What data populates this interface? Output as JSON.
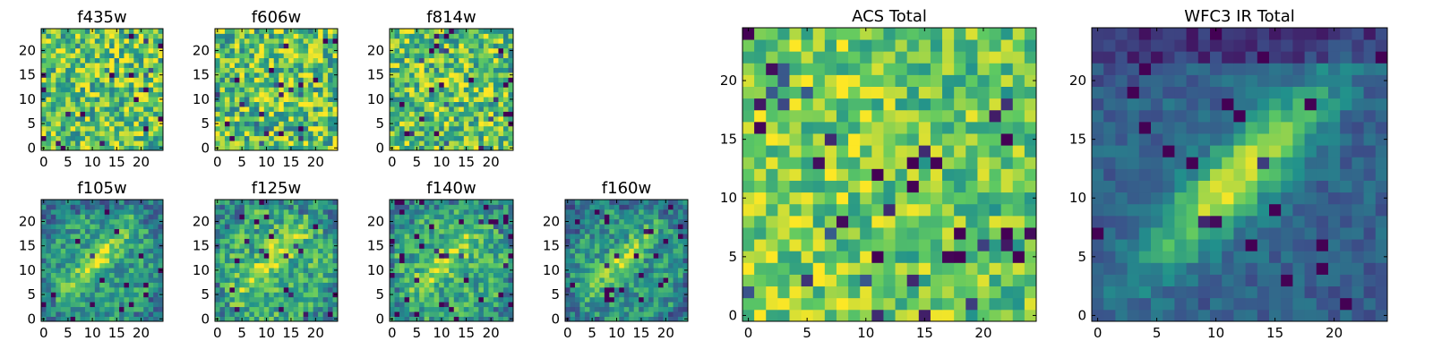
{
  "figure": {
    "description_seed": 1
  },
  "colors": {
    "colormap": [
      "#440154",
      "#3b528b",
      "#21918c",
      "#5ec962",
      "#fde725"
    ],
    "frame": "#000000",
    "background": "#ffffff"
  },
  "chart_data": [
    {
      "type": "heatmap",
      "title": "f435w",
      "xlabel": "",
      "ylabel": "",
      "xlim": [
        0,
        25
      ],
      "ylim": [
        0,
        25
      ],
      "xticks": [
        "0",
        "5",
        "10",
        "15",
        "20"
      ],
      "yticks": [
        "0",
        "5",
        "10",
        "15",
        "20"
      ],
      "grid_size": 25,
      "colormap": "viridis",
      "structure": "noise",
      "mean_level": 0.72,
      "noise_level": 0.32
    },
    {
      "type": "heatmap",
      "title": "f606w",
      "xlabel": "",
      "ylabel": "",
      "xlim": [
        0,
        25
      ],
      "ylim": [
        0,
        25
      ],
      "xticks": [
        "0",
        "5",
        "10",
        "15",
        "20"
      ],
      "yticks": [
        "0",
        "5",
        "10",
        "15",
        "20"
      ],
      "grid_size": 25,
      "colormap": "viridis",
      "structure": "noise",
      "mean_level": 0.72,
      "noise_level": 0.34
    },
    {
      "type": "heatmap",
      "title": "f814w",
      "xlabel": "",
      "ylabel": "",
      "xlim": [
        0,
        25
      ],
      "ylim": [
        0,
        25
      ],
      "xticks": [
        "0",
        "5",
        "10",
        "15",
        "20"
      ],
      "yticks": [
        "0",
        "5",
        "10",
        "15",
        "20"
      ],
      "grid_size": 25,
      "colormap": "viridis",
      "structure": "noise",
      "mean_level": 0.72,
      "noise_level": 0.32
    },
    {
      "type": "heatmap",
      "title": "f105w",
      "xlabel": "",
      "ylabel": "",
      "xlim": [
        0,
        25
      ],
      "ylim": [
        0,
        25
      ],
      "xticks": [
        "0",
        "5",
        "10",
        "15",
        "20"
      ],
      "yticks": [
        "0",
        "5",
        "10",
        "15",
        "20"
      ],
      "grid_size": 25,
      "colormap": "viridis",
      "structure": "diagonal_blob",
      "mean_level": 0.55,
      "noise_level": 0.2
    },
    {
      "type": "heatmap",
      "title": "f125w",
      "xlabel": "",
      "ylabel": "",
      "xlim": [
        0,
        25
      ],
      "ylim": [
        0,
        25
      ],
      "xticks": [
        "0",
        "5",
        "10",
        "15",
        "20"
      ],
      "yticks": [
        "0",
        "5",
        "10",
        "15",
        "20"
      ],
      "grid_size": 25,
      "colormap": "viridis",
      "structure": "diagonal_blob",
      "mean_level": 0.62,
      "noise_level": 0.24
    },
    {
      "type": "heatmap",
      "title": "f140w",
      "xlabel": "",
      "ylabel": "",
      "xlim": [
        0,
        25
      ],
      "ylim": [
        0,
        25
      ],
      "xticks": [
        "0",
        "5",
        "10",
        "15",
        "20"
      ],
      "yticks": [
        "0",
        "5",
        "10",
        "15",
        "20"
      ],
      "grid_size": 25,
      "colormap": "viridis",
      "structure": "diagonal_blob",
      "mean_level": 0.6,
      "noise_level": 0.22
    },
    {
      "type": "heatmap",
      "title": "f160w",
      "xlabel": "",
      "ylabel": "",
      "xlim": [
        0,
        25
      ],
      "ylim": [
        0,
        25
      ],
      "xticks": [
        "0",
        "5",
        "10",
        "15",
        "20"
      ],
      "yticks": [
        "0",
        "5",
        "10",
        "15",
        "20"
      ],
      "grid_size": 25,
      "colormap": "viridis",
      "structure": "diagonal_blob",
      "mean_level": 0.52,
      "noise_level": 0.2
    },
    {
      "type": "heatmap",
      "title": "ACS Total",
      "xlabel": "",
      "ylabel": "",
      "xlim": [
        0,
        25
      ],
      "ylim": [
        0,
        25
      ],
      "xticks": [
        "0",
        "5",
        "10",
        "15",
        "20"
      ],
      "yticks": [
        "0",
        "5",
        "10",
        "15",
        "20"
      ],
      "grid_size": 25,
      "colormap": "viridis",
      "structure": "noise_bright_left",
      "mean_level": 0.72,
      "noise_level": 0.24
    },
    {
      "type": "heatmap",
      "title": "WFC3 IR Total",
      "xlabel": "",
      "ylabel": "",
      "xlim": [
        0,
        25
      ],
      "ylim": [
        0,
        25
      ],
      "xticks": [
        "0",
        "5",
        "10",
        "15",
        "20"
      ],
      "yticks": [
        "0",
        "5",
        "10",
        "15",
        "20"
      ],
      "grid_size": 25,
      "colormap": "viridis",
      "structure": "smooth_diagonal_blob",
      "mean_level": 0.5,
      "noise_level": 0.1
    }
  ]
}
